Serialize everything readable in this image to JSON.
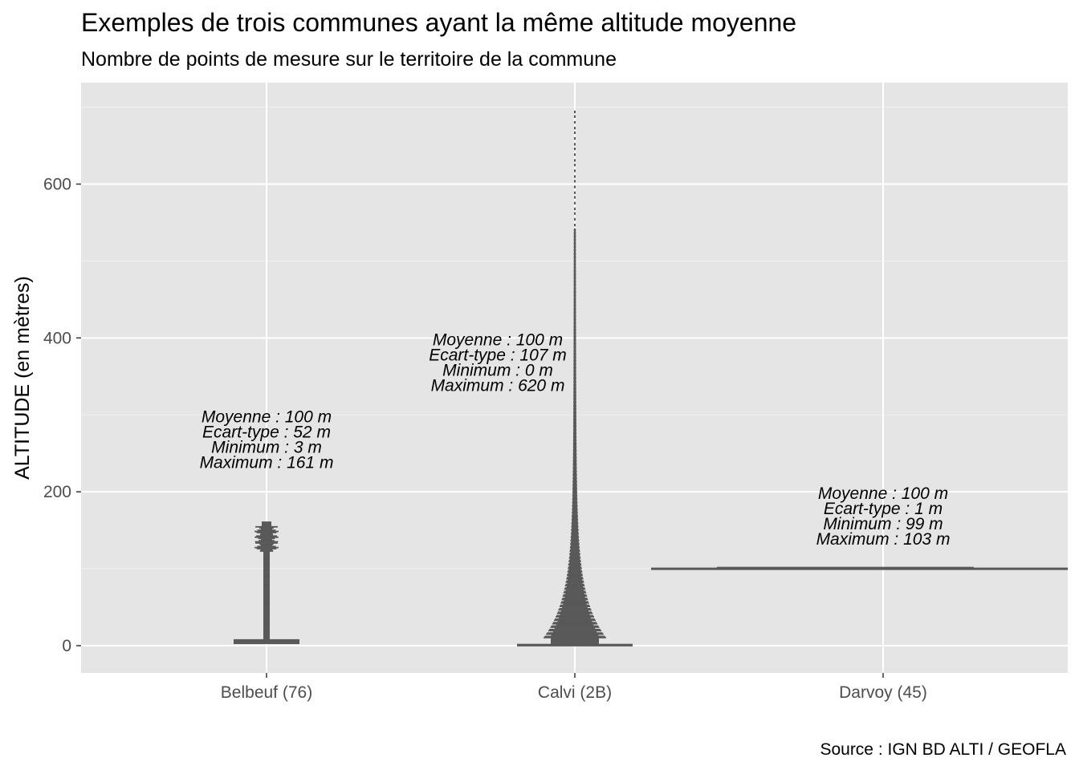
{
  "chart_data": {
    "type": "dotplot",
    "title": "Exemples de trois communes ayant la même altitude moyenne",
    "subtitle": "Nombre de points de mesure sur le territoire de la commune",
    "ylabel": "ALTITUDE (en mètres)",
    "caption": "Source : IGN BD ALTI / GEOFLA",
    "ylim": [
      -35,
      735
    ],
    "yticks": [
      0,
      200,
      400,
      600
    ],
    "grid": true,
    "background": "#e5e5e5",
    "point_color": "#595959",
    "categories": [
      "Belbeuf (76)",
      "Calvi (2B)",
      "Darvoy (45)"
    ],
    "series": [
      {
        "category": "Belbeuf (76)",
        "mean": 100,
        "sd": 52,
        "min": 3,
        "max": 161,
        "annotation": [
          "Moyenne : 100 m",
          "Ecart-type : 52 m",
          "Minimum : 3 m",
          "Maximum : 161 m"
        ],
        "annotation_y": 300
      },
      {
        "category": "Calvi (2B)",
        "mean": 100,
        "sd": 107,
        "min": 0,
        "max": 620,
        "annotation": [
          "Moyenne : 100 m",
          "Ecart-type : 107 m",
          "Minimum : 0 m",
          "Maximum : 620 m"
        ],
        "annotation_y": 400
      },
      {
        "category": "Darvoy (45)",
        "mean": 100,
        "sd": 1,
        "min": 99,
        "max": 103,
        "annotation": [
          "Moyenne : 100 m",
          "Ecart-type : 1 m",
          "Minimum : 99 m",
          "Maximum : 103 m"
        ],
        "annotation_y": 200
      }
    ]
  }
}
